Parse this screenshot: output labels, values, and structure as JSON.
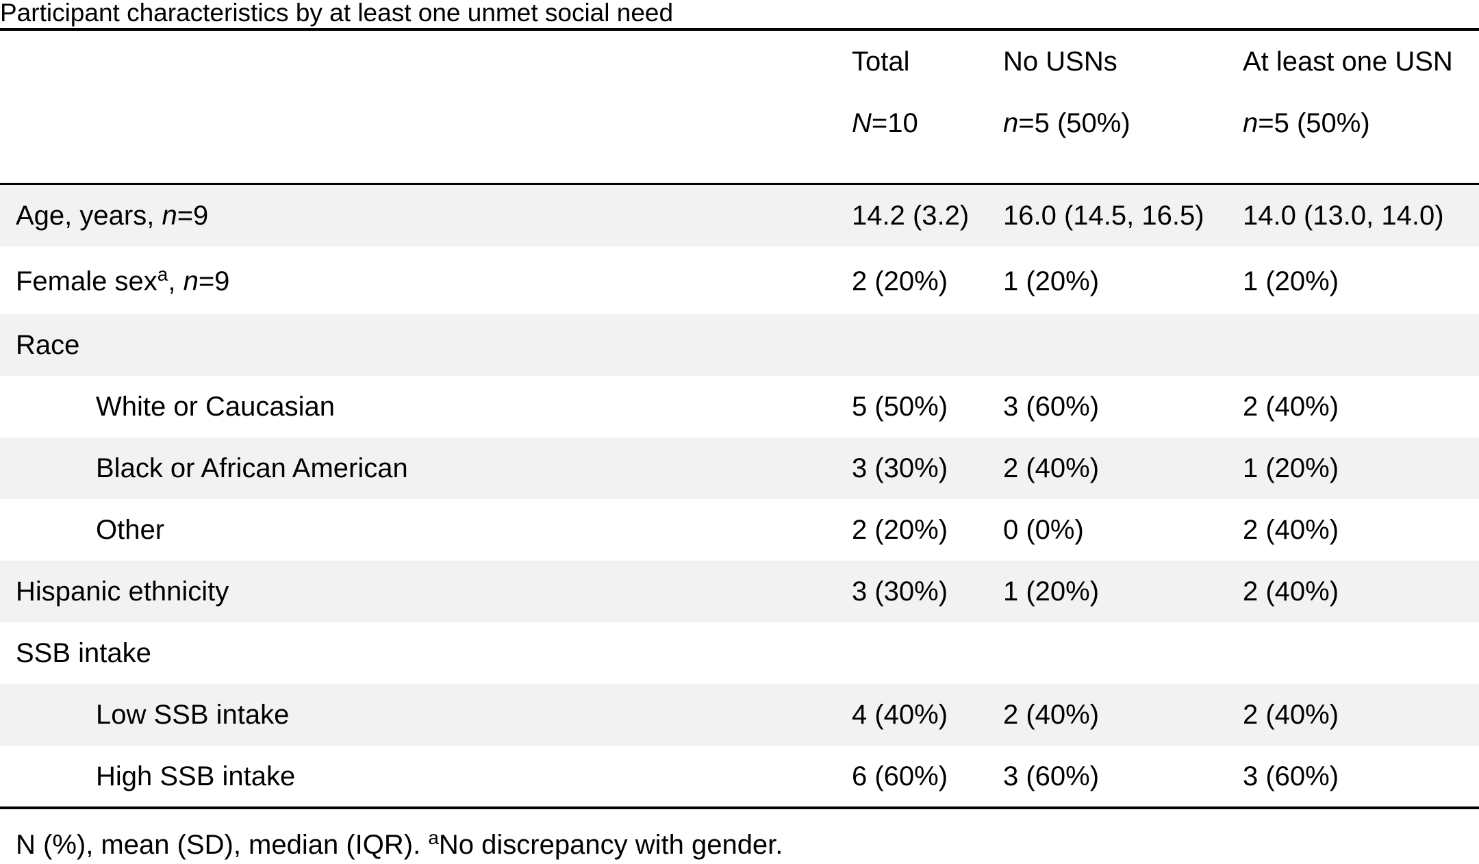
{
  "caption": "Participant characteristics by at least one unmet social need",
  "header": {
    "col_total_title": "Total",
    "col_total_n_symbol": "N",
    "col_total_n_value": "=10",
    "col_nousn_title": "No USNs",
    "col_nousn_n_symbol": "n",
    "col_nousn_n_value": "=5 (50%)",
    "col_usn_title": "At least one USN",
    "col_usn_n_symbol": "n",
    "col_usn_n_value": "=5 (50%)"
  },
  "rows": [
    {
      "label": "Age, years, ",
      "label_n_symbol": "n",
      "label_n_value": "=9",
      "total": "14.2 (3.2)",
      "no_usn": "16.0 (14.5, 16.5)",
      "usn": "14.0 (13.0, 14.0)"
    },
    {
      "label": "Female sex",
      "label_sup": "a",
      "label_comma": ", ",
      "label_n_symbol": "n",
      "label_n_value": "=9",
      "total": "2 (20%)",
      "no_usn": "1 (20%)",
      "usn": "1 (20%)"
    },
    {
      "label": "Race",
      "total": "",
      "no_usn": "",
      "usn": ""
    },
    {
      "label": "White or Caucasian",
      "total": "5 (50%)",
      "no_usn": "3 (60%)",
      "usn": "2 (40%)"
    },
    {
      "label": "Black or African American",
      "total": "3 (30%)",
      "no_usn": "2 (40%)",
      "usn": "1 (20%)"
    },
    {
      "label": "Other",
      "total": "2 (20%)",
      "no_usn": "0 (0%)",
      "usn": "2 (40%)"
    },
    {
      "label": "Hispanic ethnicity",
      "total": "3 (30%)",
      "no_usn": "1 (20%)",
      "usn": "2 (40%)"
    },
    {
      "label": "SSB intake",
      "total": "",
      "no_usn": "",
      "usn": ""
    },
    {
      "label": "Low SSB intake",
      "total": "4 (40%)",
      "no_usn": "2 (40%)",
      "usn": "2 (40%)"
    },
    {
      "label": "High SSB intake",
      "total": "6 (60%)",
      "no_usn": "3 (60%)",
      "usn": "3 (60%)"
    }
  ],
  "footnote": {
    "text": "N (%), mean (SD), median (IQR). ",
    "sup": "a",
    "note": "No discrepancy with gender."
  },
  "colors": {
    "shaded_row": "#f2f2f2",
    "rule": "#000000",
    "text": "#000000"
  }
}
